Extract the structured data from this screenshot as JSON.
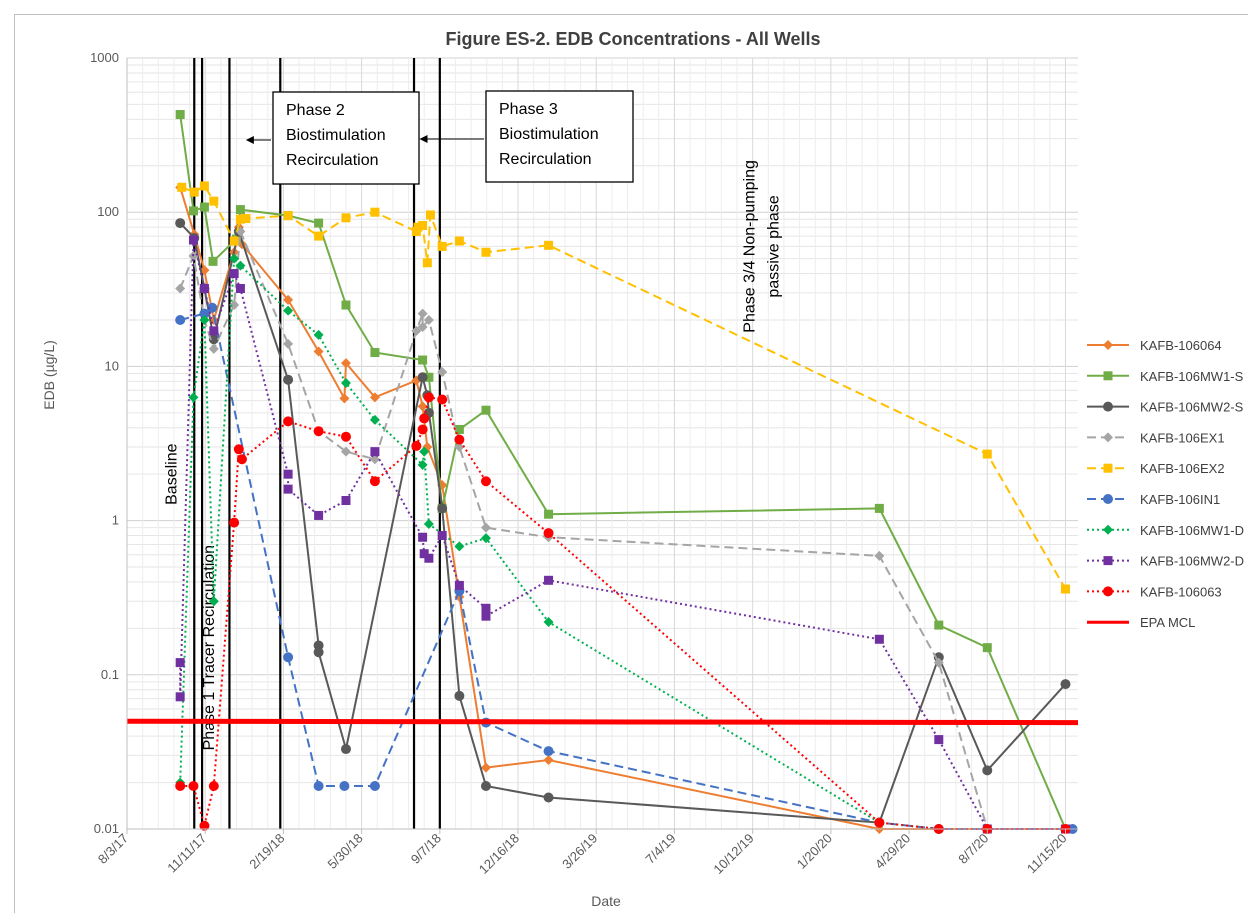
{
  "chart_data": {
    "type": "line",
    "title": "Figure ES-2. EDB Concentrations - All Wells",
    "xlabel": "Date",
    "ylabel": "EDB (µg/L)",
    "yscale": "log",
    "ylim": [
      0.01,
      1000
    ],
    "xlim": [
      "2017-08-03",
      "2020-12-01"
    ],
    "grid": true,
    "legend_position": "right",
    "y_ticks": [
      "1000",
      "100",
      "10",
      "1",
      "0.1",
      "0.01"
    ],
    "x_ticks": [
      {
        "date": "2017-08-03",
        "label": "8/3/17"
      },
      {
        "date": "2017-11-11",
        "label": "11/11/17"
      },
      {
        "date": "2018-02-19",
        "label": "2/19/18"
      },
      {
        "date": "2018-05-30",
        "label": "5/30/18"
      },
      {
        "date": "2018-09-07",
        "label": "9/7/18"
      },
      {
        "date": "2018-12-16",
        "label": "12/16/18"
      },
      {
        "date": "2019-03-26",
        "label": "3/26/19"
      },
      {
        "date": "2019-07-04",
        "label": "7/4/19"
      },
      {
        "date": "2019-10-12",
        "label": "10/12/19"
      },
      {
        "date": "2020-01-20",
        "label": "1/20/20"
      },
      {
        "date": "2020-04-29",
        "label": "4/29/20"
      },
      {
        "date": "2020-08-07",
        "label": "8/7/20"
      },
      {
        "date": "2020-11-15",
        "label": "11/15/20"
      }
    ],
    "phase_lines": [
      "2017-10-28",
      "2017-11-07",
      "2017-12-12",
      "2018-02-15",
      "2018-08-05",
      "2018-09-07"
    ],
    "annotations": [
      {
        "lines": [
          "Baseline"
        ],
        "date": "2017-10-05",
        "y": 2.0,
        "rotate": true
      },
      {
        "lines": [
          "Phase 1 Tracer Recirculation"
        ],
        "date": "2017-11-22",
        "y": 0.15,
        "rotate": true
      },
      {
        "lines": [
          "Phase 2",
          "Biostimulation",
          "Recirculation"
        ],
        "boxed": true,
        "arrow_to": "2018-01-02"
      },
      {
        "lines": [
          "Phase 3",
          "Biostimulation",
          "Recirculation"
        ],
        "boxed": true,
        "arrow_to": "2018-08-12"
      },
      {
        "lines": [
          "Phase 3/4 Non-pumping",
          "passive phase"
        ],
        "date": "2019-10-30",
        "y": 60,
        "rotate": true
      }
    ],
    "series": [
      {
        "name": "KAFB-106064",
        "color": "#ed7d31",
        "dash": "solid",
        "marker": "diamond",
        "points": [
          [
            "2017-10-10",
            145
          ],
          [
            "2017-10-28",
            72
          ],
          [
            "2017-11-10",
            42
          ],
          [
            "2017-11-22",
            20
          ],
          [
            "2017-12-18",
            55
          ],
          [
            "2017-12-24",
            80
          ],
          [
            "2017-12-28",
            62
          ],
          [
            "2018-02-25",
            27
          ],
          [
            "2018-04-05",
            12.5
          ],
          [
            "2018-05-08",
            6.2
          ],
          [
            "2018-05-10",
            10.5
          ],
          [
            "2018-06-16",
            6.3
          ],
          [
            "2018-08-08",
            8.1
          ],
          [
            "2018-08-16",
            5.5
          ],
          [
            "2018-08-22",
            3
          ],
          [
            "2018-09-10",
            1.7
          ],
          [
            "2018-10-02",
            0.32
          ],
          [
            "2018-11-05",
            0.025
          ],
          [
            "2019-01-24",
            0.028
          ],
          [
            "2020-03-22",
            0.01
          ],
          [
            "2020-06-06",
            0.01
          ],
          [
            "2020-08-07",
            0.01
          ],
          [
            "2020-11-15",
            0.01
          ]
        ]
      },
      {
        "name": "KAFB-106MW1-S",
        "color": "#70ad47",
        "dash": "solid",
        "marker": "square",
        "points": [
          [
            "2017-10-10",
            430
          ],
          [
            "2017-10-27",
            102
          ],
          [
            "2017-11-10",
            108
          ],
          [
            "2017-11-21",
            48
          ],
          [
            "2017-12-21",
            67
          ],
          [
            "2017-12-26",
            104
          ],
          [
            "2018-02-25",
            95
          ],
          [
            "2018-04-05",
            85
          ],
          [
            "2018-05-10",
            25
          ],
          [
            "2018-06-16",
            12.3
          ],
          [
            "2018-08-16",
            11
          ],
          [
            "2018-08-24",
            8.5
          ],
          [
            "2018-09-10",
            1.2
          ],
          [
            "2018-10-02",
            3.9
          ],
          [
            "2018-11-05",
            5.2
          ],
          [
            "2019-01-24",
            1.1
          ],
          [
            "2020-03-22",
            1.2
          ],
          [
            "2020-06-06",
            0.21
          ],
          [
            "2020-08-07",
            0.15
          ],
          [
            "2020-11-15",
            0.01
          ]
        ]
      },
      {
        "name": "KAFB-106MW2-S",
        "color": "#595959",
        "dash": "solid",
        "marker": "circle",
        "points": [
          [
            "2017-10-10",
            85
          ],
          [
            "2017-10-28",
            68
          ],
          [
            "2017-11-10",
            32
          ],
          [
            "2017-11-22",
            15
          ],
          [
            "2017-12-24",
            75
          ],
          [
            "2018-02-25",
            8.2
          ],
          [
            "2018-04-05",
            0.155
          ],
          [
            "2018-04-05",
            0.14
          ],
          [
            "2018-05-10",
            0.033
          ],
          [
            "2018-08-16",
            8.5
          ],
          [
            "2018-08-22",
            6.5
          ],
          [
            "2018-08-24",
            5
          ],
          [
            "2018-09-10",
            1.2
          ],
          [
            "2018-10-02",
            0.073
          ],
          [
            "2018-11-05",
            0.019
          ],
          [
            "2019-01-24",
            0.016
          ],
          [
            "2020-03-22",
            0.011
          ],
          [
            "2020-06-06",
            0.13
          ],
          [
            "2020-08-07",
            0.024
          ],
          [
            "2020-11-15",
            0.087
          ]
        ]
      },
      {
        "name": "KAFB-106EX1",
        "color": "#a5a5a5",
        "dash": "dashed",
        "marker": "diamond",
        "points": [
          [
            "2017-10-10",
            32
          ],
          [
            "2017-10-27",
            52
          ],
          [
            "2017-11-10",
            20
          ],
          [
            "2017-11-22",
            13
          ],
          [
            "2017-12-18",
            25
          ],
          [
            "2017-12-26",
            75
          ],
          [
            "2018-02-25",
            14
          ],
          [
            "2018-04-05",
            3.8
          ],
          [
            "2018-05-10",
            2.8
          ],
          [
            "2018-06-16",
            2.5
          ],
          [
            "2018-08-08",
            17
          ],
          [
            "2018-08-16",
            22
          ],
          [
            "2018-08-16",
            18
          ],
          [
            "2018-08-24",
            20
          ],
          [
            "2018-09-10",
            9.2
          ],
          [
            "2018-10-02",
            3
          ],
          [
            "2018-11-05",
            0.9
          ],
          [
            "2019-01-24",
            0.78
          ],
          [
            "2020-03-22",
            0.59
          ],
          [
            "2020-06-06",
            0.12
          ],
          [
            "2020-08-07",
            0.01
          ],
          [
            "2020-11-15",
            0.01
          ]
        ]
      },
      {
        "name": "KAFB-106EX2",
        "color": "#ffc000",
        "dash": "dashed",
        "marker": "square",
        "points": [
          [
            "2017-10-12",
            145
          ],
          [
            "2017-10-28",
            135
          ],
          [
            "2017-11-10",
            148
          ],
          [
            "2017-11-22",
            118
          ],
          [
            "2017-12-18",
            65
          ],
          [
            "2017-12-26",
            90
          ],
          [
            "2018-01-02",
            91
          ],
          [
            "2018-02-25",
            95
          ],
          [
            "2018-04-05",
            70
          ],
          [
            "2018-05-10",
            92
          ],
          [
            "2018-06-16",
            100
          ],
          [
            "2018-08-08",
            75
          ],
          [
            "2018-08-10",
            80
          ],
          [
            "2018-08-16",
            82
          ],
          [
            "2018-08-22",
            47
          ],
          [
            "2018-08-26",
            96
          ],
          [
            "2018-09-10",
            60
          ],
          [
            "2018-10-02",
            65
          ],
          [
            "2018-11-05",
            55
          ],
          [
            "2019-01-24",
            61
          ],
          [
            "2020-08-07",
            2.7
          ],
          [
            "2020-11-15",
            0.36
          ]
        ]
      },
      {
        "name": "KAFB-106IN1",
        "color": "#4472c4",
        "dash": "dashed",
        "marker": "circle",
        "points": [
          [
            "2017-10-10",
            20
          ],
          [
            "2017-11-10",
            22
          ],
          [
            "2017-11-20",
            24
          ],
          [
            "2018-02-25",
            0.13
          ],
          [
            "2018-04-05",
            0.019
          ],
          [
            "2018-05-08",
            0.019
          ],
          [
            "2018-06-16",
            0.019
          ],
          [
            "2018-10-02",
            0.35
          ],
          [
            "2018-11-05",
            0.049
          ],
          [
            "2019-01-24",
            0.032
          ],
          [
            "2020-03-22",
            0.011
          ],
          [
            "2020-06-06",
            0.01
          ],
          [
            "2020-08-07",
            0.01
          ],
          [
            "2020-11-24",
            0.01
          ]
        ]
      },
      {
        "name": "KAFB-106MW1-D",
        "color": "#00b050",
        "dash": "dotted",
        "marker": "diamond",
        "points": [
          [
            "2017-10-10",
            0.02
          ],
          [
            "2017-10-27",
            6.3
          ],
          [
            "2017-11-10",
            20
          ],
          [
            "2017-11-22",
            0.3
          ],
          [
            "2017-12-18",
            50
          ],
          [
            "2017-12-26",
            45
          ],
          [
            "2018-02-25",
            23
          ],
          [
            "2018-04-05",
            16
          ],
          [
            "2018-05-10",
            7.8
          ],
          [
            "2018-06-16",
            4.5
          ],
          [
            "2018-08-16",
            2.3
          ],
          [
            "2018-08-18",
            2.8
          ],
          [
            "2018-08-24",
            0.95
          ],
          [
            "2018-10-02",
            0.68
          ],
          [
            "2018-11-05",
            0.77
          ],
          [
            "2019-01-24",
            0.22
          ],
          [
            "2020-03-22",
            0.011
          ],
          [
            "2020-06-06",
            0.01
          ],
          [
            "2020-08-07",
            0.01
          ],
          [
            "2020-11-15",
            0.01
          ]
        ]
      },
      {
        "name": "KAFB-106MW2-D",
        "color": "#7030a0",
        "dash": "dotted",
        "marker": "square",
        "points": [
          [
            "2017-10-10",
            0.12
          ],
          [
            "2017-10-10",
            0.072
          ],
          [
            "2017-10-27",
            66
          ],
          [
            "2017-11-10",
            32
          ],
          [
            "2017-11-22",
            17
          ],
          [
            "2017-12-18",
            40
          ],
          [
            "2017-12-26",
            32
          ],
          [
            "2018-02-25",
            2
          ],
          [
            "2018-02-25",
            1.6
          ],
          [
            "2018-04-05",
            1.08
          ],
          [
            "2018-05-10",
            1.35
          ],
          [
            "2018-06-16",
            2.8
          ],
          [
            "2018-08-16",
            0.78
          ],
          [
            "2018-08-18",
            0.61
          ],
          [
            "2018-08-24",
            0.57
          ],
          [
            "2018-09-10",
            0.8
          ],
          [
            "2018-10-02",
            0.38
          ],
          [
            "2018-11-05",
            0.27
          ],
          [
            "2018-11-05",
            0.24
          ],
          [
            "2019-01-24",
            0.41
          ],
          [
            "2020-03-22",
            0.17
          ],
          [
            "2020-06-06",
            0.038
          ],
          [
            "2020-08-07",
            0.01
          ],
          [
            "2020-11-15",
            0.01
          ]
        ]
      },
      {
        "name": "KAFB-106063",
        "color": "#ff0000",
        "dash": "dotted",
        "marker": "circle",
        "points": [
          [
            "2017-10-10",
            0.019
          ],
          [
            "2017-10-27",
            0.019
          ],
          [
            "2017-11-10",
            0.0105
          ],
          [
            "2017-11-22",
            0.019
          ],
          [
            "2017-12-18",
            0.97
          ],
          [
            "2017-12-24",
            2.9
          ],
          [
            "2017-12-28",
            2.5
          ],
          [
            "2018-02-25",
            4.4
          ],
          [
            "2018-04-05",
            3.8
          ],
          [
            "2018-05-10",
            3.5
          ],
          [
            "2018-06-16",
            1.8
          ],
          [
            "2018-08-08",
            3.05
          ],
          [
            "2018-08-16",
            3.9
          ],
          [
            "2018-08-18",
            4.6
          ],
          [
            "2018-08-24",
            6.3
          ],
          [
            "2018-09-10",
            6.1
          ],
          [
            "2018-10-02",
            3.35
          ],
          [
            "2018-11-05",
            1.8
          ],
          [
            "2019-01-24",
            0.83
          ],
          [
            "2020-03-22",
            0.011
          ],
          [
            "2020-06-06",
            0.01
          ],
          [
            "2020-08-07",
            0.01
          ],
          [
            "2020-11-15",
            0.01
          ]
        ]
      },
      {
        "name": "EPA MCL",
        "color": "#ff0000",
        "dash": "solid",
        "marker": "none",
        "thick": true,
        "points": [
          [
            "2017-08-03",
            0.05
          ],
          [
            "2020-12-01",
            0.049
          ]
        ]
      }
    ]
  }
}
